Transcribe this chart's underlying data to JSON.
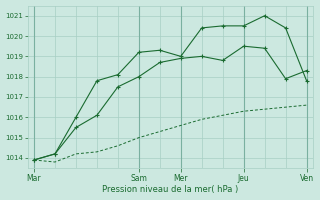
{
  "bg_color": "#cce8e0",
  "grid_color": "#a8cfc4",
  "line_color": "#1a6b30",
  "xlabel": "Pression niveau de la mer( hPa )",
  "ylim": [
    1013.5,
    1021.5
  ],
  "yticks": [
    1014,
    1015,
    1016,
    1017,
    1018,
    1019,
    1020,
    1021
  ],
  "xtick_labels": [
    "Mar",
    "Sam",
    "Mer",
    "Jeu",
    "Ven"
  ],
  "xtick_positions": [
    0,
    5,
    7,
    10,
    13
  ],
  "n_points": 14,
  "series1_y": [
    1013.9,
    1013.8,
    1014.2,
    1014.3,
    1014.6,
    1015.0,
    1015.3,
    1015.6,
    1015.9,
    1016.1,
    1016.3,
    1016.4,
    1016.5,
    1016.6
  ],
  "series2_y": [
    1013.9,
    1014.2,
    1015.5,
    1016.1,
    1017.5,
    1018.0,
    1018.7,
    1018.9,
    1019.0,
    1018.8,
    1019.5,
    1019.4,
    1017.9,
    1018.3
  ],
  "series3_y": [
    1013.9,
    1014.2,
    1016.0,
    1017.8,
    1018.1,
    1019.2,
    1019.3,
    1019.0,
    1020.4,
    1020.5,
    1020.5,
    1021.0,
    1020.4,
    1017.8
  ]
}
